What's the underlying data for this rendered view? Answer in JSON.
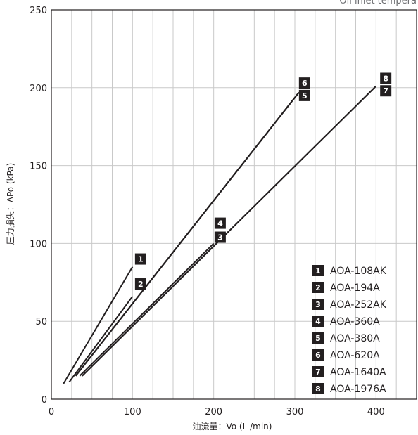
{
  "chart_data": {
    "type": "line",
    "header_text": "Oil inlet tempera",
    "xlabel": "油流量：Vo (L /min)",
    "ylabel": "圧力損失：ΔPo (kPa)",
    "xlim": [
      0,
      450
    ],
    "ylim": [
      0,
      250
    ],
    "x_ticks": [
      0,
      100,
      200,
      300,
      400
    ],
    "y_ticks": [
      0,
      50,
      100,
      150,
      200,
      250
    ],
    "grid": true,
    "legend_position": "bottom-right",
    "series": [
      {
        "badge": "1",
        "name": "AOA-108AK",
        "x": [
          15,
          100
        ],
        "y": [
          10,
          85
        ]
      },
      {
        "badge": "2",
        "name": "AOA-194A",
        "x": [
          22,
          100
        ],
        "y": [
          11,
          66
        ]
      },
      {
        "badge": "3",
        "name": "AOA-252AK",
        "x": [
          35,
          200
        ],
        "y": [
          15,
          100
        ]
      },
      {
        "badge": "4",
        "name": "AOA-360A",
        "x": [
          30,
          305
        ],
        "y": [
          15,
          197
        ]
      },
      {
        "badge": "5",
        "name": "AOA-380A",
        "x": [
          30,
          305
        ],
        "y": [
          15,
          197
        ]
      },
      {
        "badge": "6",
        "name": "AOA-620A",
        "x": [
          30,
          305
        ],
        "y": [
          15,
          197
        ]
      },
      {
        "badge": "7",
        "name": "AOA-1640A",
        "x": [
          38,
          400
        ],
        "y": [
          15,
          201
        ]
      },
      {
        "badge": "8",
        "name": "AOA-1976A",
        "x": [
          38,
          400
        ],
        "y": [
          15,
          201
        ]
      }
    ],
    "line_annotations": [
      {
        "badge": "1",
        "x": 110,
        "y": 90
      },
      {
        "badge": "2",
        "x": 110,
        "y": 74
      },
      {
        "badge": "4",
        "x": 208,
        "y": 113
      },
      {
        "badge": "3",
        "x": 208,
        "y": 104
      },
      {
        "badge": "6",
        "x": 312,
        "y": 203
      },
      {
        "badge": "5",
        "x": 312,
        "y": 195
      },
      {
        "badge": "8",
        "x": 412,
        "y": 206
      },
      {
        "badge": "7",
        "x": 412,
        "y": 198
      }
    ]
  }
}
